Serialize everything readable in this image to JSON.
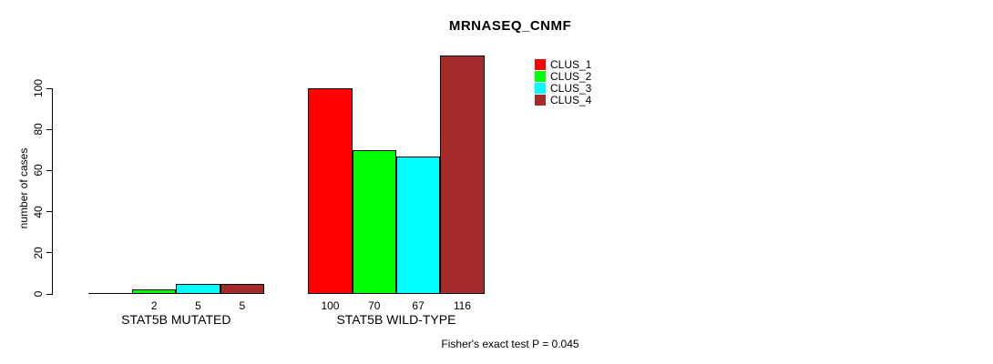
{
  "chart_data": {
    "type": "bar",
    "title": "MRNASEQ_CNMF",
    "xlabel": "",
    "ylabel": "number of cases",
    "ylim": [
      0,
      100
    ],
    "yticks": [
      0,
      20,
      40,
      60,
      80,
      100
    ],
    "grid": false,
    "legend_position": "top-center-right",
    "categories": [
      "STAT5B MUTATED",
      "STAT5B WILD-TYPE"
    ],
    "series": [
      {
        "name": "CLUS_1",
        "color": "#FF0000",
        "values": [
          0,
          100
        ]
      },
      {
        "name": "CLUS_2",
        "color": "#00FF00",
        "values": [
          2,
          70
        ]
      },
      {
        "name": "CLUS_3",
        "color": "#00FFFF",
        "values": [
          5,
          67
        ]
      },
      {
        "name": "CLUS_4",
        "color": "#A52A2A",
        "values": [
          5,
          116
        ]
      }
    ],
    "bar_value_labels": [
      [
        "",
        "2",
        "5",
        "5"
      ],
      [
        "100",
        "70",
        "67",
        "116"
      ]
    ],
    "annotation": "Fisher's exact test P = 0.045"
  }
}
